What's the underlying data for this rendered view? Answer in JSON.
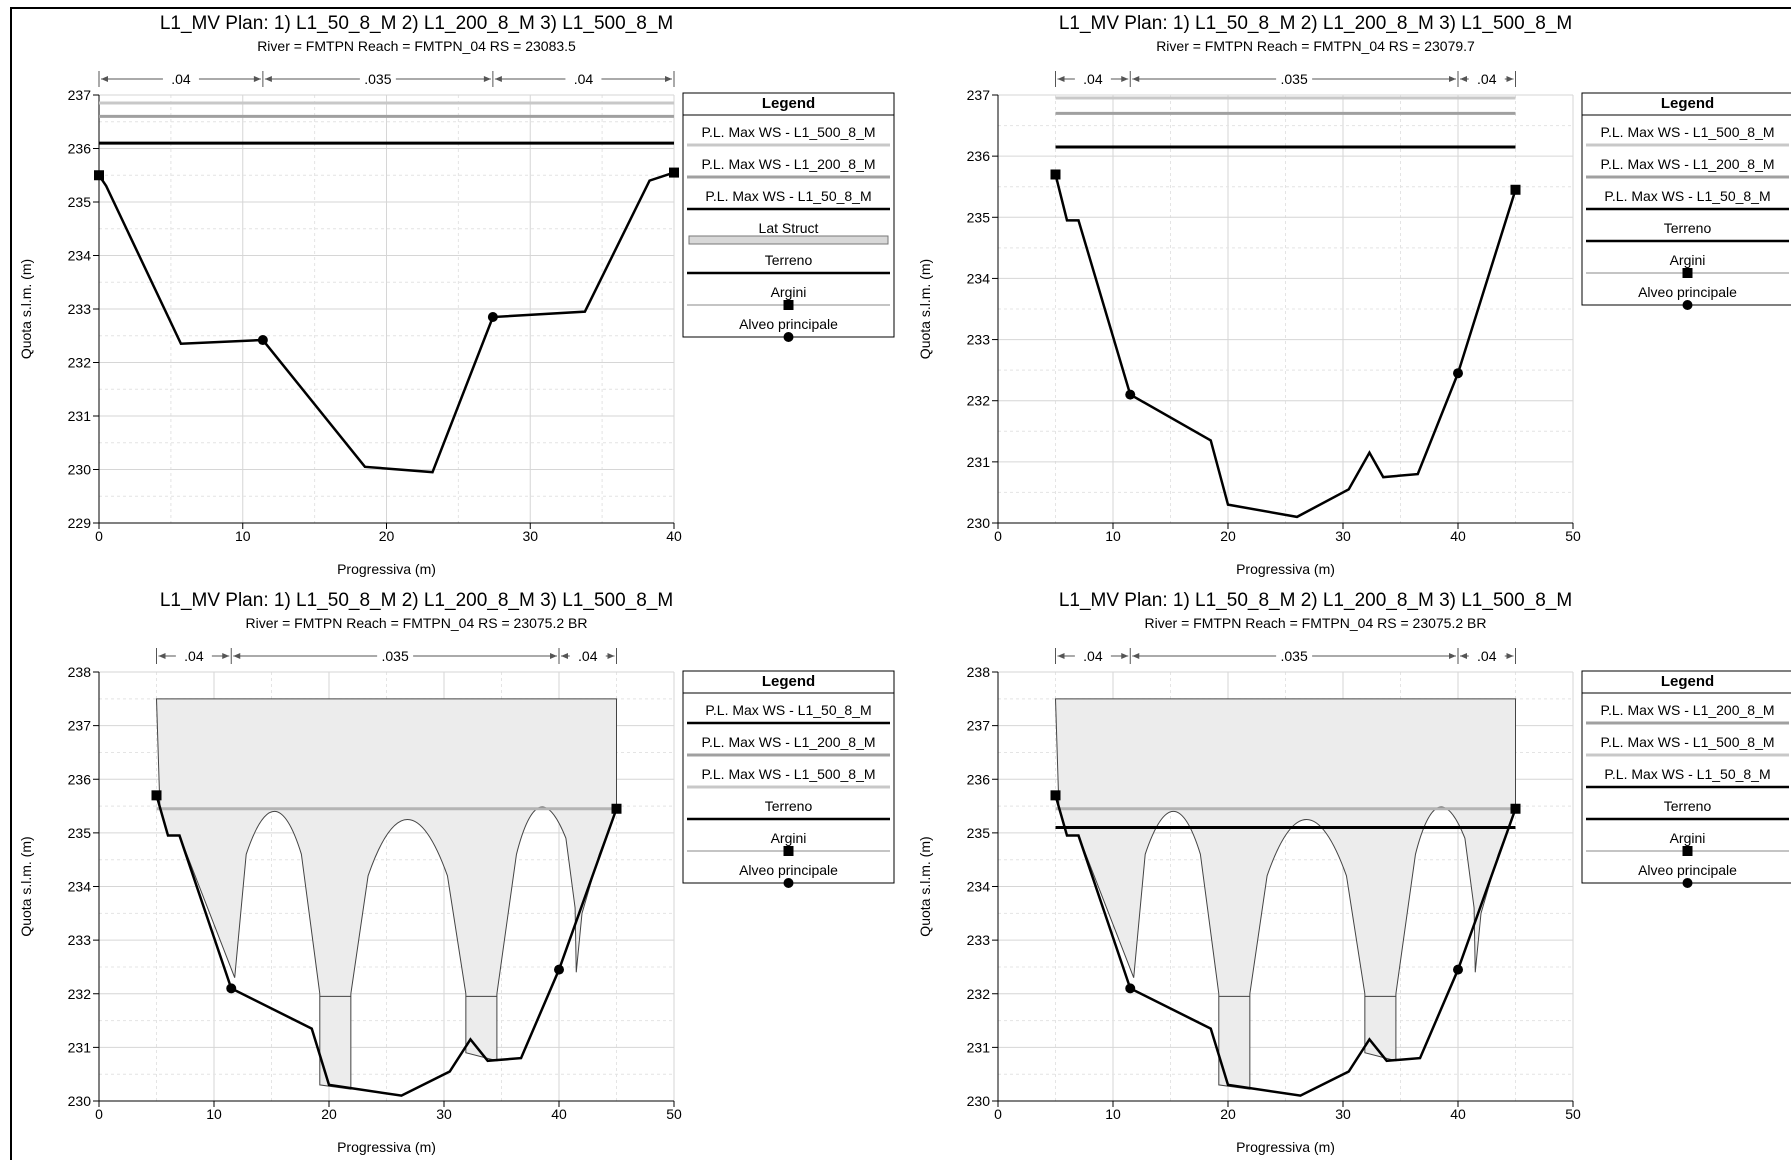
{
  "chart_data": [
    {
      "type": "line",
      "title": "L1_MV       Plan:    1) L1_50_8_M    2) L1_200_8_M    3) L1_500_8_M",
      "subtitle": "River = FMTPN   Reach = FMTPN_04     RS = 23083.5",
      "xlabel": "Progressiva (m)",
      "ylabel": "Quota s.l.m. (m)",
      "xlim": [
        0,
        40
      ],
      "ylim": [
        229,
        237
      ],
      "xticks": [
        0,
        10,
        20,
        30,
        40
      ],
      "yticks": [
        229,
        230,
        231,
        232,
        233,
        234,
        235,
        236,
        237
      ],
      "grid": true,
      "legend_position": "right",
      "n_values": [
        {
          "label": ".04",
          "from": 0,
          "to": 11.4
        },
        {
          "label": ".035",
          "from": 11.4,
          "to": 27.4
        },
        {
          "label": ".04",
          "from": 27.4,
          "to": 40
        }
      ],
      "legend": {
        "title": "Legend",
        "entries": [
          {
            "label": "P.L. Max WS - L1_500_8_M",
            "style": "line-light"
          },
          {
            "label": "P.L. Max WS - L1_200_8_M",
            "style": "line-mid"
          },
          {
            "label": "P.L. Max WS - L1_50_8_M",
            "style": "line-dark"
          },
          {
            "label": "Lat Struct",
            "style": "box"
          },
          {
            "label": "Terreno",
            "style": "line-dark"
          },
          {
            "label": "Argini",
            "style": "square"
          },
          {
            "label": "Alveo principale",
            "style": "dot"
          }
        ]
      },
      "water_surfaces": [
        {
          "name": "P.L. Max WS - L1_500_8_M",
          "elevation": 236.85,
          "x": [
            0,
            40
          ],
          "color": "#c8c8c8"
        },
        {
          "name": "P.L. Max WS - L1_200_8_M",
          "elevation": 236.6,
          "x": [
            0,
            40
          ],
          "color": "#a0a0a0"
        },
        {
          "name": "P.L. Max WS - L1_50_8_M",
          "elevation": 236.1,
          "x": [
            0,
            40
          ],
          "color": "#000000"
        }
      ],
      "series": [
        {
          "name": "Terreno",
          "x": [
            0,
            0.5,
            5.7,
            11.4,
            18.5,
            23.2,
            27.4,
            33.8,
            38.3,
            40
          ],
          "y": [
            235.5,
            235.3,
            232.35,
            232.42,
            230.05,
            229.95,
            232.85,
            232.95,
            235.4,
            235.55
          ]
        }
      ],
      "levees": [
        {
          "x": 0,
          "y": 235.5
        },
        {
          "x": 40,
          "y": 235.55
        }
      ],
      "bank_stations": [
        {
          "x": 11.4,
          "y": 232.42
        },
        {
          "x": 27.4,
          "y": 232.85
        }
      ]
    },
    {
      "type": "line",
      "title": "L1_MV       Plan:    1) L1_50_8_M    2) L1_200_8_M    3) L1_500_8_M",
      "subtitle": "River = FMTPN   Reach = FMTPN_04     RS = 23079.7",
      "xlabel": "Progressiva (m)",
      "ylabel": "Quota s.l.m. (m)",
      "xlim": [
        0,
        50
      ],
      "ylim": [
        230,
        237
      ],
      "xticks": [
        0,
        10,
        20,
        30,
        40,
        50
      ],
      "yticks": [
        230,
        231,
        232,
        233,
        234,
        235,
        236,
        237
      ],
      "grid": true,
      "legend_position": "right",
      "n_values": [
        {
          "label": ".04",
          "from": 5,
          "to": 11.5
        },
        {
          "label": ".035",
          "from": 11.5,
          "to": 40
        },
        {
          "label": ".04",
          "from": 40,
          "to": 45
        }
      ],
      "legend": {
        "title": "Legend",
        "entries": [
          {
            "label": "P.L. Max WS - L1_500_8_M",
            "style": "line-light"
          },
          {
            "label": "P.L. Max WS - L1_200_8_M",
            "style": "line-mid"
          },
          {
            "label": "P.L. Max WS - L1_50_8_M",
            "style": "line-dark"
          },
          {
            "label": "Terreno",
            "style": "line-dark"
          },
          {
            "label": "Argini",
            "style": "square"
          },
          {
            "label": "Alveo principale",
            "style": "dot"
          }
        ]
      },
      "water_surfaces": [
        {
          "name": "P.L. Max WS - L1_500_8_M",
          "elevation": 236.95,
          "x": [
            5,
            45
          ],
          "color": "#c8c8c8"
        },
        {
          "name": "P.L. Max WS - L1_200_8_M",
          "elevation": 236.7,
          "x": [
            5,
            45
          ],
          "color": "#a0a0a0"
        },
        {
          "name": "P.L. Max WS - L1_50_8_M",
          "elevation": 236.15,
          "x": [
            5,
            45
          ],
          "color": "#000000"
        }
      ],
      "series": [
        {
          "name": "Terreno",
          "x": [
            5,
            6,
            7,
            11.5,
            18.5,
            20,
            26,
            30.5,
            32.3,
            33.5,
            36.5,
            40,
            45
          ],
          "y": [
            235.7,
            234.95,
            234.95,
            232.1,
            231.35,
            230.3,
            230.1,
            230.55,
            231.15,
            230.75,
            230.8,
            232.45,
            235.45
          ]
        }
      ],
      "levees": [
        {
          "x": 5,
          "y": 235.7
        },
        {
          "x": 45,
          "y": 235.45
        }
      ],
      "bank_stations": [
        {
          "x": 11.5,
          "y": 232.1
        },
        {
          "x": 40,
          "y": 232.45
        }
      ]
    },
    {
      "type": "line",
      "title": "L1_MV       Plan:    1) L1_50_8_M    2) L1_200_8_M    3) L1_500_8_M",
      "subtitle": "River = FMTPN   Reach = FMTPN_04     RS = 23075.2  BR",
      "xlabel": "Progressiva (m)",
      "ylabel": "Quota s.l.m. (m)",
      "xlim": [
        0,
        50
      ],
      "ylim": [
        230,
        238
      ],
      "xticks": [
        0,
        10,
        20,
        30,
        40,
        50
      ],
      "yticks": [
        230,
        231,
        232,
        233,
        234,
        235,
        236,
        237,
        238
      ],
      "grid": true,
      "legend_position": "right",
      "n_values": [
        {
          "label": ".04",
          "from": 5,
          "to": 11.5
        },
        {
          "label": ".035",
          "from": 11.5,
          "to": 40
        },
        {
          "label": ".04",
          "from": 40,
          "to": 45
        }
      ],
      "legend": {
        "title": "Legend",
        "entries": [
          {
            "label": "P.L. Max WS - L1_50_8_M",
            "style": "line-dark"
          },
          {
            "label": "P.L. Max WS - L1_200_8_M",
            "style": "line-mid"
          },
          {
            "label": "P.L. Max WS - L1_500_8_M",
            "style": "line-light"
          },
          {
            "label": "Terreno",
            "style": "line-dark"
          },
          {
            "label": "Argini",
            "style": "square"
          },
          {
            "label": "Alveo principale",
            "style": "dot"
          }
        ]
      },
      "water_surfaces": [
        {
          "name": "P.L. Max WS - L1_50_8_M",
          "elevation": 235.45,
          "x": [
            5,
            45
          ],
          "color": "#b4b4b4"
        }
      ],
      "bridge": {
        "deck_top": 237.5,
        "x": [
          5,
          45
        ],
        "low_chord": 235.45,
        "arch_crowns": [
          15.3,
          26.8,
          38.2
        ],
        "piers": [
          {
            "x": [
              19.2,
              21.9
            ],
            "top": 231.95
          },
          {
            "x": [
              31.9,
              34.6
            ],
            "top": 231.95
          }
        ]
      },
      "series": [
        {
          "name": "Terreno",
          "x": [
            5,
            6,
            7,
            11.5,
            18.5,
            20,
            26.3,
            30.5,
            32.3,
            33.8,
            36.7,
            40,
            45
          ],
          "y": [
            235.7,
            234.95,
            234.95,
            232.1,
            231.35,
            230.3,
            230.1,
            230.55,
            231.15,
            230.75,
            230.8,
            232.45,
            235.45
          ]
        }
      ],
      "levees": [
        {
          "x": 5,
          "y": 235.7
        },
        {
          "x": 45,
          "y": 235.45
        }
      ],
      "bank_stations": [
        {
          "x": 11.5,
          "y": 232.1
        },
        {
          "x": 40,
          "y": 232.45
        }
      ]
    },
    {
      "type": "line",
      "title": "L1_MV       Plan:    1) L1_50_8_M    2) L1_200_8_M    3) L1_500_8_M",
      "subtitle": "River = FMTPN   Reach = FMTPN_04     RS = 23075.2  BR",
      "xlabel": "Progressiva (m)",
      "ylabel": "Quota s.l.m. (m)",
      "xlim": [
        0,
        50
      ],
      "ylim": [
        230,
        238
      ],
      "xticks": [
        0,
        10,
        20,
        30,
        40,
        50
      ],
      "yticks": [
        230,
        231,
        232,
        233,
        234,
        235,
        236,
        237,
        238
      ],
      "grid": true,
      "legend_position": "right",
      "n_values": [
        {
          "label": ".04",
          "from": 5,
          "to": 11.5
        },
        {
          "label": ".035",
          "from": 11.5,
          "to": 40
        },
        {
          "label": ".04",
          "from": 40,
          "to": 45
        }
      ],
      "legend": {
        "title": "Legend",
        "entries": [
          {
            "label": "P.L. Max WS - L1_200_8_M",
            "style": "line-mid"
          },
          {
            "label": "P.L. Max WS - L1_500_8_M",
            "style": "line-light"
          },
          {
            "label": "P.L. Max WS - L1_50_8_M",
            "style": "line-dark"
          },
          {
            "label": "Terreno",
            "style": "line-dark"
          },
          {
            "label": "Argini",
            "style": "square"
          },
          {
            "label": "Alveo principale",
            "style": "dot"
          }
        ]
      },
      "water_surfaces": [
        {
          "name": "P.L. Max WS - L1_200_8_M",
          "elevation": 235.45,
          "x": [
            5,
            45
          ],
          "color": "#b4b4b4"
        },
        {
          "name": "P.L. Max WS - L1_50_8_M",
          "elevation": 235.1,
          "x": [
            5,
            45
          ],
          "color": "#000000"
        }
      ],
      "bridge": {
        "deck_top": 237.5,
        "x": [
          5,
          45
        ],
        "low_chord": 235.45,
        "arch_crowns": [
          15.3,
          26.8,
          38.2
        ],
        "piers": [
          {
            "x": [
              19.2,
              21.9
            ],
            "top": 231.95
          },
          {
            "x": [
              31.9,
              34.6
            ],
            "top": 231.95
          }
        ]
      },
      "series": [
        {
          "name": "Terreno",
          "x": [
            5,
            6,
            7,
            11.5,
            18.5,
            20,
            26.3,
            30.5,
            32.3,
            33.8,
            36.7,
            40,
            45
          ],
          "y": [
            235.7,
            234.95,
            234.95,
            232.1,
            231.35,
            230.3,
            230.1,
            230.55,
            231.15,
            230.75,
            230.8,
            232.45,
            235.45
          ]
        }
      ],
      "levees": [
        {
          "x": 5,
          "y": 235.7
        },
        {
          "x": 45,
          "y": 235.45
        }
      ],
      "bank_stations": [
        {
          "x": 11.5,
          "y": 232.1
        },
        {
          "x": 40,
          "y": 232.45
        }
      ]
    }
  ]
}
